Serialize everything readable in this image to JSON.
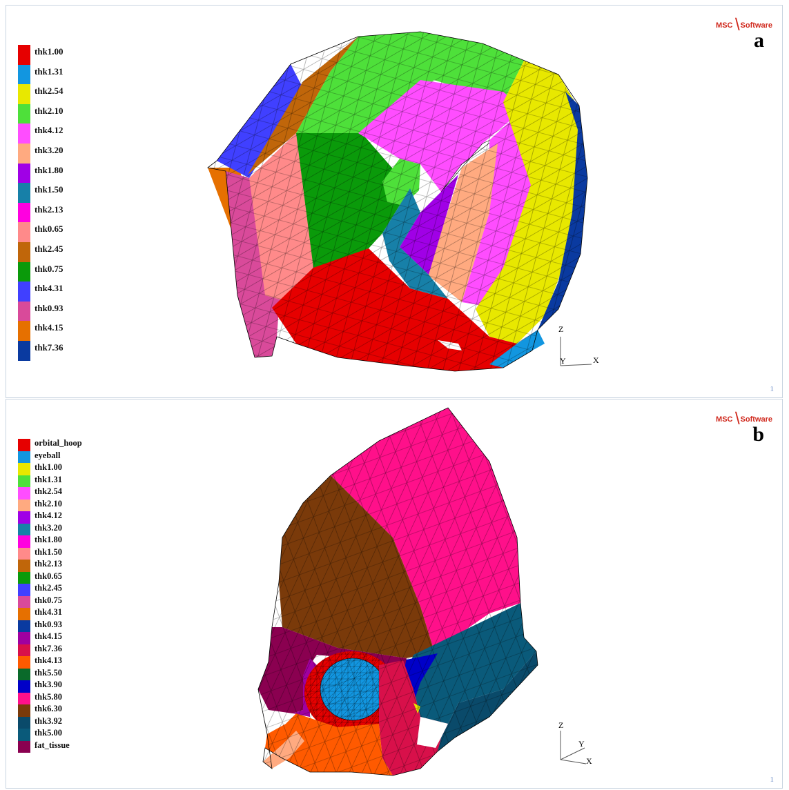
{
  "panels": [
    {
      "id": "a",
      "letter": "a",
      "logo": {
        "left": "MSC",
        "mark": "╲",
        "right": "Software"
      },
      "page_number": "1",
      "axes": {
        "z": "Z",
        "y": "Y",
        "x": "X"
      },
      "legend": [
        {
          "label": "thk1.00",
          "color": "#e60000"
        },
        {
          "label": "thk1.31",
          "color": "#1296e0"
        },
        {
          "label": "thk2.54",
          "color": "#e8e800"
        },
        {
          "label": "thk2.10",
          "color": "#4ee03a"
        },
        {
          "label": "thk4.12",
          "color": "#ff4dff"
        },
        {
          "label": "thk3.20",
          "color": "#ffaa80"
        },
        {
          "label": "thk1.80",
          "color": "#a000e6"
        },
        {
          "label": "thk1.50",
          "color": "#1780a8"
        },
        {
          "label": "thk2.13",
          "color": "#ff00e0"
        },
        {
          "label": "thk0.65",
          "color": "#ff8a8a"
        },
        {
          "label": "thk2.45",
          "color": "#c0660a"
        },
        {
          "label": "thk0.75",
          "color": "#0a9a0a"
        },
        {
          "label": "thk4.31",
          "color": "#4040ff"
        },
        {
          "label": "thk0.93",
          "color": "#d94a9a"
        },
        {
          "label": "thk4.15",
          "color": "#e67000"
        },
        {
          "label": "thk7.36",
          "color": "#0a3aa0"
        }
      ]
    },
    {
      "id": "b",
      "letter": "b",
      "logo": {
        "left": "MSC",
        "mark": "╲",
        "right": "Software"
      },
      "page_number": "1",
      "axes": {
        "z": "Z",
        "y": "Y",
        "x": "X"
      },
      "legend": [
        {
          "label": "orbital_hoop",
          "color": "#e60000"
        },
        {
          "label": "eyeball",
          "color": "#1296e0"
        },
        {
          "label": "thk1.00",
          "color": "#e8e800"
        },
        {
          "label": "thk1.31",
          "color": "#4ee03a"
        },
        {
          "label": "thk2.54",
          "color": "#ff4dff"
        },
        {
          "label": "thk2.10",
          "color": "#ffaa80"
        },
        {
          "label": "thk4.12",
          "color": "#a000e6"
        },
        {
          "label": "thk3.20",
          "color": "#1780a8"
        },
        {
          "label": "thk1.80",
          "color": "#ff00e0"
        },
        {
          "label": "thk1.50",
          "color": "#ff8a8a"
        },
        {
          "label": "thk2.13",
          "color": "#c0660a"
        },
        {
          "label": "thk0.65",
          "color": "#0a9a0a"
        },
        {
          "label": "thk2.45",
          "color": "#4040ff"
        },
        {
          "label": "thk0.75",
          "color": "#d94a9a"
        },
        {
          "label": "thk4.31",
          "color": "#e67000"
        },
        {
          "label": "thk0.93",
          "color": "#0a3aa0"
        },
        {
          "label": "thk4.15",
          "color": "#a000a0"
        },
        {
          "label": "thk7.36",
          "color": "#d8104a"
        },
        {
          "label": "thk4.13",
          "color": "#ff5a00"
        },
        {
          "label": "thk5.50",
          "color": "#0a6a2a"
        },
        {
          "label": "thk3.90",
          "color": "#0000c8"
        },
        {
          "label": "thk5.80",
          "color": "#ff108a"
        },
        {
          "label": "thk6.30",
          "color": "#7a3a0a"
        },
        {
          "label": "thk3.92",
          "color": "#0a4a6a"
        },
        {
          "label": "thk5.00",
          "color": "#0a5a7a"
        },
        {
          "label": "fat_tissue",
          "color": "#8a0050"
        }
      ]
    }
  ]
}
